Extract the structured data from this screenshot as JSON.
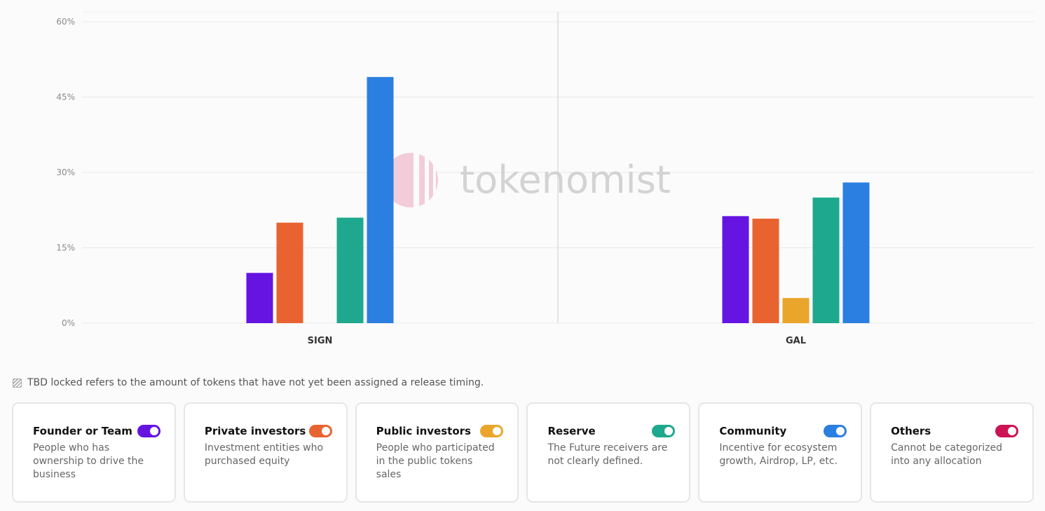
{
  "chart_data": {
    "type": "bar",
    "categories": [
      "SIGN",
      "GAL"
    ],
    "series": [
      {
        "name": "Founder or Team",
        "color": "#6514e2",
        "values": [
          10,
          21.3
        ]
      },
      {
        "name": "Private investors",
        "color": "#e8632f",
        "values": [
          20,
          20.8
        ]
      },
      {
        "name": "Public investors",
        "color": "#e9a62a",
        "values": [
          0,
          5
        ]
      },
      {
        "name": "Reserve",
        "color": "#1ea98e",
        "values": [
          21,
          25
        ]
      },
      {
        "name": "Community",
        "color": "#2b7fe1",
        "values": [
          49,
          28
        ]
      }
    ],
    "y_ticks": [
      "0%",
      "15%",
      "30%",
      "45%",
      "60%"
    ],
    "ylim": [
      0,
      60
    ],
    "grid": true,
    "watermark": "tokenomist"
  },
  "note": "TBD locked refers to the amount of tokens that have not yet been assigned a release timing.",
  "legend": [
    {
      "title": "Founder or Team",
      "description": "People who has ownership to drive the business",
      "color": "#6514e2"
    },
    {
      "title": "Private investors",
      "description": "Investment entities who purchased equity",
      "color": "#e8632f"
    },
    {
      "title": "Public investors",
      "description": "People who participated in the public tokens sales",
      "color": "#e9a62a"
    },
    {
      "title": "Reserve",
      "description": "The Future receivers are not clearly defined.",
      "color": "#1ea98e"
    },
    {
      "title": "Community",
      "description": "Incentive for ecosystem growth, Airdrop, LP, etc.",
      "color": "#2b7fe1"
    },
    {
      "title": "Others",
      "description": "Cannot be categorized into any allocation",
      "color": "#cc1455"
    }
  ]
}
